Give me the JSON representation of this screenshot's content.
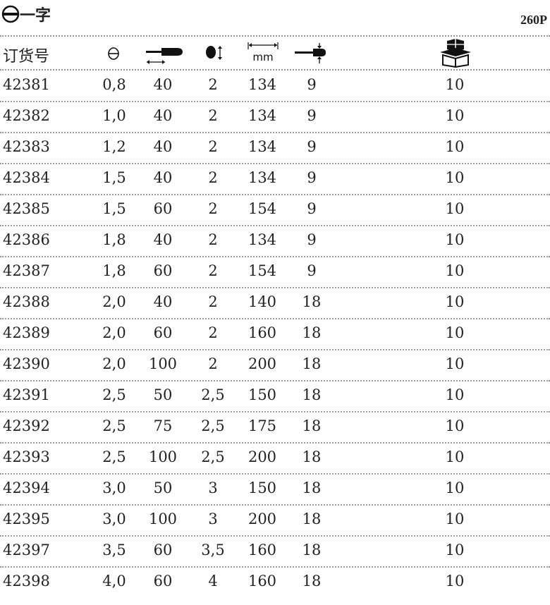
{
  "header": {
    "title": "一字",
    "title_icon": "slotted-tip-icon",
    "count": "260P"
  },
  "table": {
    "columns": [
      {
        "label": "订货号"
      },
      {
        "icon": "slot-width-icon"
      },
      {
        "icon": "blade-length-icon"
      },
      {
        "icon": "shank-diameter-icon"
      },
      {
        "icon": "overall-length-mm-icon",
        "label": "mm"
      },
      {
        "icon": "tip-width-icon"
      },
      {
        "icon": "package-box-icon"
      }
    ],
    "rows": [
      [
        "42381",
        "0,8",
        "40",
        "2",
        "134",
        "9",
        "10"
      ],
      [
        "42382",
        "1,0",
        "40",
        "2",
        "134",
        "9",
        "10"
      ],
      [
        "42383",
        "1,2",
        "40",
        "2",
        "134",
        "9",
        "10"
      ],
      [
        "42384",
        "1,5",
        "40",
        "2",
        "134",
        "9",
        "10"
      ],
      [
        "42385",
        "1,5",
        "60",
        "2",
        "154",
        "9",
        "10"
      ],
      [
        "42386",
        "1,8",
        "40",
        "2",
        "134",
        "9",
        "10"
      ],
      [
        "42387",
        "1,8",
        "60",
        "2",
        "154",
        "9",
        "10"
      ],
      [
        "42388",
        "2,0",
        "40",
        "2",
        "140",
        "18",
        "10"
      ],
      [
        "42389",
        "2,0",
        "60",
        "2",
        "160",
        "18",
        "10"
      ],
      [
        "42390",
        "2,0",
        "100",
        "2",
        "200",
        "18",
        "10"
      ],
      [
        "42391",
        "2,5",
        "50",
        "2,5",
        "150",
        "18",
        "10"
      ],
      [
        "42392",
        "2,5",
        "75",
        "2,5",
        "175",
        "18",
        "10"
      ],
      [
        "42393",
        "2,5",
        "100",
        "2,5",
        "200",
        "18",
        "10"
      ],
      [
        "42394",
        "3,0",
        "50",
        "3",
        "150",
        "18",
        "10"
      ],
      [
        "42395",
        "3,0",
        "100",
        "3",
        "200",
        "18",
        "10"
      ],
      [
        "42397",
        "3,5",
        "60",
        "3,5",
        "160",
        "18",
        "10"
      ],
      [
        "42398",
        "4,0",
        "60",
        "4",
        "160",
        "18",
        "10"
      ]
    ]
  }
}
